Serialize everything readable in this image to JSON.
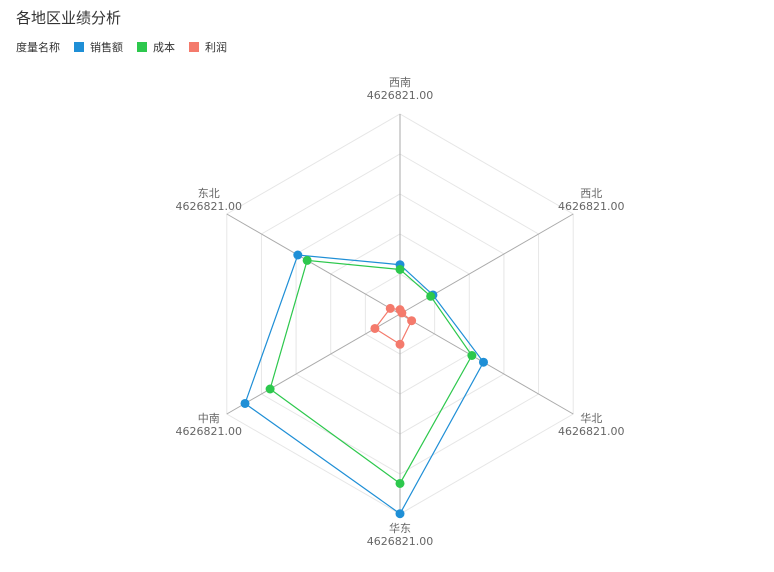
{
  "title": "各地区业绩分析",
  "legend": {
    "label": "度量名称"
  },
  "colors": {
    "sales": "#1f8fd6",
    "cost": "#2dc84d",
    "profit": "#f47a6c",
    "axis": "#aaaaaa",
    "grid": "#e6e6e6"
  },
  "chart_data": {
    "type": "radar",
    "title": "各地区业绩分析",
    "indicators": [
      {
        "name": "西南",
        "max": "4626821.00"
      },
      {
        "name": "西北",
        "max": "4626821.00"
      },
      {
        "name": "华北",
        "max": "4626821.00"
      },
      {
        "name": "华东",
        "max": "4626821.00"
      },
      {
        "name": "中南",
        "max": "4626821.00"
      },
      {
        "name": "东北",
        "max": "4626821.00"
      }
    ],
    "max": 4626821,
    "series": [
      {
        "name": "销售额",
        "color": "#1f8fd6",
        "values": [
          1140000,
          880000,
          2230000,
          4620000,
          4140000,
          2730000
        ]
      },
      {
        "name": "成本",
        "color": "#2dc84d",
        "values": [
          1030000,
          820000,
          1920000,
          3920000,
          3470000,
          2480000
        ]
      },
      {
        "name": "利润",
        "color": "#f47a6c",
        "values": [
          100000,
          50000,
          310000,
          700000,
          670000,
          260000
        ]
      }
    ]
  }
}
